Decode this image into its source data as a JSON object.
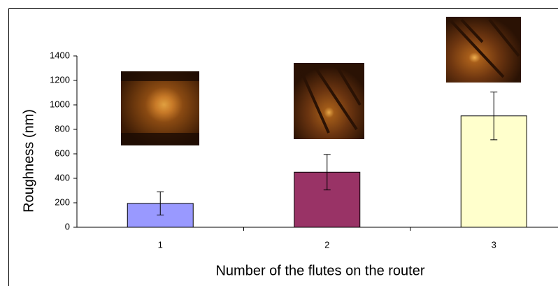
{
  "chart_data": {
    "type": "bar",
    "x_label": "Number of the flutes on the router",
    "y_label": "Roughness (nm)",
    "categories": [
      "1",
      "2",
      "3"
    ],
    "values": [
      195,
      450,
      910
    ],
    "errors": [
      95,
      145,
      195
    ],
    "colors": [
      "#9999ff",
      "#993366",
      "#ffffcc"
    ],
    "ylim": [
      0,
      1400
    ],
    "yticks": [
      0,
      200,
      400,
      600,
      800,
      1000,
      1200,
      1400
    ],
    "grid": false
  }
}
